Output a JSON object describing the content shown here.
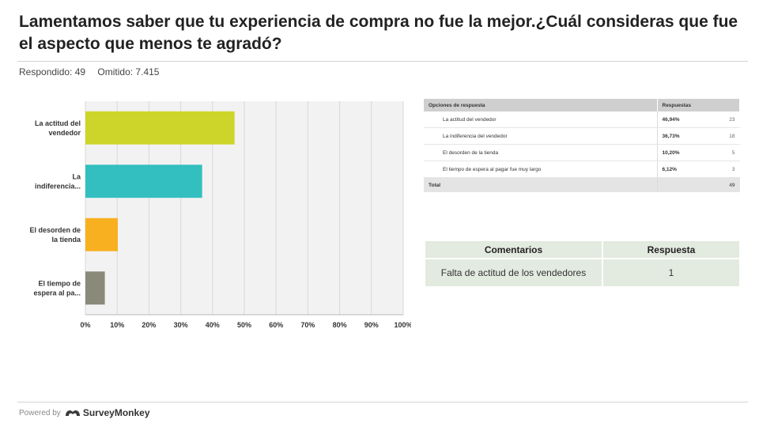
{
  "header": {
    "title": "Lamentamos saber que tu experiencia de compra no fue la mejor.¿Cuál consideras que fue el aspecto que menos te agradó?",
    "answered": "Respondido: 49",
    "skipped": "Omitido: 7.415"
  },
  "chart_data": {
    "type": "bar",
    "orientation": "horizontal",
    "categories": [
      [
        "La actitud del",
        "vendedor"
      ],
      [
        "La",
        "indiferencia..."
      ],
      [
        "El desorden de",
        "la tienda"
      ],
      [
        "El tiempo de",
        "espera al pa..."
      ]
    ],
    "values": [
      46.94,
      36.73,
      10.2,
      6.12
    ],
    "colors": [
      "#cdd52a",
      "#33bfbf",
      "#f8b020",
      "#8a8a7a"
    ],
    "xticks": [
      "0%",
      "10%",
      "20%",
      "30%",
      "40%",
      "50%",
      "60%",
      "70%",
      "80%",
      "90%",
      "100%"
    ],
    "xlim": [
      0,
      100
    ],
    "grid": true
  },
  "response_table": {
    "headers": [
      "Opciones de respuesta",
      "Respuestas"
    ],
    "rows": [
      {
        "option": "La actitud del vendedor",
        "percent": "46,94%",
        "count": "23"
      },
      {
        "option": "La indiferencia del vendedor",
        "percent": "36,73%",
        "count": "18"
      },
      {
        "option": "El desorden de la tienda",
        "percent": "10,20%",
        "count": "5"
      },
      {
        "option": "El tiempo de espera al pagar fue muy largo",
        "percent": "6,12%",
        "count": "3"
      }
    ],
    "total_label": "Total",
    "total_count": "49"
  },
  "comments_table": {
    "headers": [
      "Comentarios",
      "Respuesta"
    ],
    "rows": [
      {
        "comment": "Falta de actitud de los vendedores",
        "answer": "1"
      }
    ]
  },
  "footer": {
    "powered_by": "Powered by",
    "brand": "SurveyMonkey"
  }
}
